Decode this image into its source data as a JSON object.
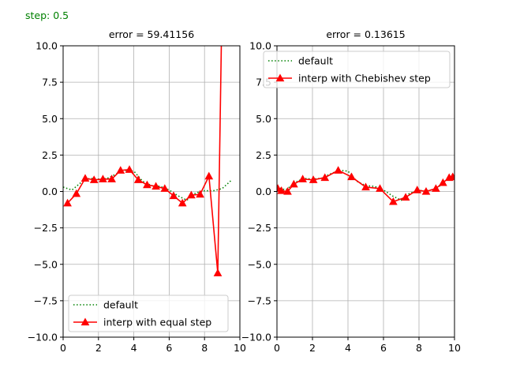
{
  "figure": {
    "step_label": "step: 0.5",
    "step_color": "#008000"
  },
  "chart_data": [
    {
      "type": "line",
      "title": "error = 59.41156",
      "xlabel": "",
      "ylabel": "",
      "xlim": [
        0,
        10
      ],
      "ylim": [
        -10,
        10
      ],
      "x_ticks": [
        0,
        2,
        4,
        6,
        8,
        10
      ],
      "x_tick_labels": [
        "0",
        "2",
        "4",
        "6",
        "8",
        "10"
      ],
      "y_ticks": [
        -10,
        -7.5,
        -5,
        -2.5,
        0,
        2.5,
        5,
        7.5,
        10
      ],
      "y_tick_labels": [
        "−10.0",
        "−7.5",
        "−5.0",
        "−2.5",
        "0.0",
        "2.5",
        "5.0",
        "7.5",
        "10.0"
      ],
      "grid": true,
      "legend_position": "lower-left",
      "series": [
        {
          "name": "default",
          "color": "#008000",
          "style": "dotted",
          "marker": "none",
          "x": [
            0,
            0.5,
            1,
            1.5,
            2,
            2.5,
            3,
            3.5,
            4,
            4.5,
            5,
            5.5,
            6,
            6.5,
            7,
            7.5,
            8,
            8.5,
            9,
            9.5
          ],
          "y": [
            0.3,
            0.1,
            0.6,
            0.9,
            0.85,
            0.9,
            1.2,
            1.45,
            1.4,
            0.7,
            0.4,
            0.35,
            0.1,
            -0.3,
            -0.6,
            -0.1,
            0.05,
            0.05,
            0.2,
            0.75
          ]
        },
        {
          "name": "interp with equal step",
          "color": "#ff0000",
          "style": "solid",
          "marker": "triangle",
          "x": [
            0.25,
            0.75,
            1.25,
            1.75,
            2.25,
            2.75,
            3.25,
            3.75,
            4.25,
            4.75,
            5.25,
            5.75,
            6.25,
            6.75,
            7.25,
            7.75,
            8.25,
            8.75
          ],
          "y": [
            -0.8,
            -0.15,
            0.9,
            0.8,
            0.85,
            0.85,
            1.45,
            1.5,
            0.8,
            0.45,
            0.35,
            0.2,
            -0.3,
            -0.8,
            -0.25,
            -0.2,
            1.05,
            -5.6
          ],
          "end_x": 8.95,
          "end_y": 10
        }
      ]
    },
    {
      "type": "line",
      "title": "error = 0.13615",
      "xlabel": "",
      "ylabel": "",
      "xlim": [
        0,
        10
      ],
      "ylim": [
        -10,
        10
      ],
      "x_ticks": [
        0,
        2,
        4,
        6,
        8,
        10
      ],
      "x_tick_labels": [
        "0",
        "2",
        "4",
        "6",
        "8",
        "10"
      ],
      "y_ticks": [
        -10,
        -7.5,
        -5,
        -2.5,
        0,
        2.5,
        5,
        7.5,
        10
      ],
      "y_tick_labels": [
        "−10.0",
        "−7.5",
        "−5.0",
        "−2.5",
        "0.0",
        "2.5",
        "5.0",
        "7.5",
        "10.0"
      ],
      "grid": true,
      "legend_position": "upper-left",
      "series": [
        {
          "name": "default",
          "color": "#008000",
          "style": "dotted",
          "marker": "none",
          "x": [
            0,
            0.5,
            1,
            1.5,
            2,
            2.5,
            3,
            3.5,
            4,
            4.5,
            5,
            5.5,
            6,
            6.5,
            7,
            7.5,
            8,
            8.5,
            9,
            9.5,
            10
          ],
          "y": [
            0.3,
            0.1,
            0.6,
            0.9,
            0.85,
            0.9,
            1.2,
            1.45,
            1.4,
            0.7,
            0.4,
            0.35,
            0.1,
            -0.3,
            -0.6,
            -0.1,
            0.05,
            0.05,
            0.2,
            0.75,
            1.05
          ]
        },
        {
          "name": "interp with Chebishev step",
          "color": "#ff0000",
          "style": "solid",
          "marker": "triangle",
          "x": [
            0.05,
            0.25,
            0.6,
            0.95,
            1.45,
            2.05,
            2.7,
            3.45,
            4.2,
            5.0,
            5.8,
            6.55,
            7.25,
            7.9,
            8.4,
            8.95,
            9.35,
            9.7,
            9.9
          ],
          "y": [
            0.2,
            0.05,
            0.0,
            0.5,
            0.85,
            0.8,
            0.95,
            1.45,
            1.0,
            0.3,
            0.2,
            -0.7,
            -0.4,
            0.1,
            0.0,
            0.2,
            0.6,
            0.95,
            1.0
          ]
        }
      ]
    }
  ]
}
